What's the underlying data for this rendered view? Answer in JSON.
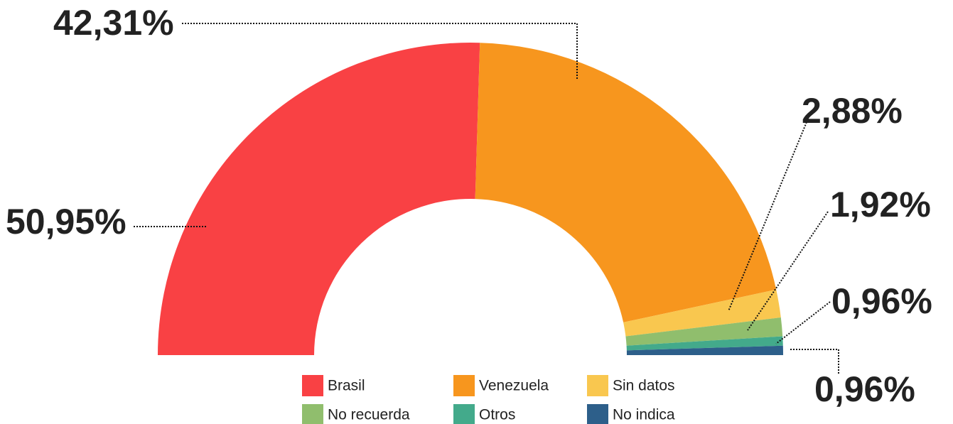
{
  "chart_data": {
    "type": "pie",
    "half": true,
    "categories": [
      "Brasil",
      "Venezuela",
      "Sin datos",
      "No recuerda",
      "Otros",
      "No indica"
    ],
    "values": [
      50.95,
      42.31,
      2.88,
      1.92,
      0.96,
      0.96
    ],
    "value_labels": [
      "50,95%",
      "42,31%",
      "2,88%",
      "1,92%",
      "0,96%",
      "0,96%"
    ],
    "colors": [
      "#f94144",
      "#f7961e",
      "#f9c74f",
      "#90be6d",
      "#43aa8b",
      "#2d5f8a"
    ],
    "legend": "bottom"
  }
}
